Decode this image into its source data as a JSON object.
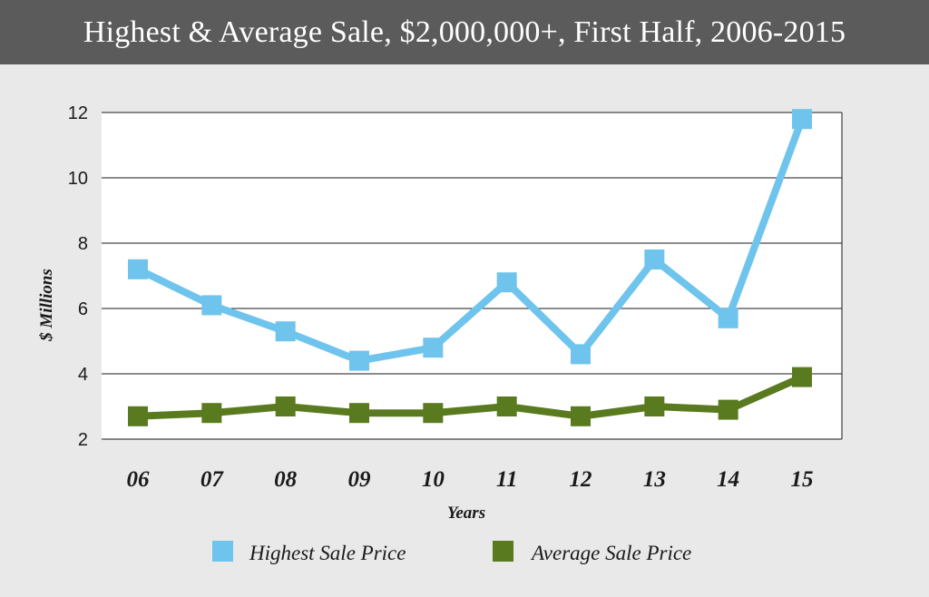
{
  "chart_data": {
    "type": "line",
    "title": "Highest & Average Sale, $2,000,000+, First Half, 2006-2015",
    "xlabel": "Years",
    "ylabel": "$ Millions",
    "categories": [
      "06",
      "07",
      "08",
      "09",
      "10",
      "11",
      "12",
      "13",
      "14",
      "15"
    ],
    "ylim": [
      2,
      12
    ],
    "yticks": [
      "2",
      "4",
      "6",
      "8",
      "10",
      "12"
    ],
    "grid": true,
    "legend_position": "bottom",
    "series": [
      {
        "name": "Highest Sale Price",
        "color": "#6ec4ec",
        "values": [
          7.2,
          6.1,
          5.3,
          4.4,
          4.8,
          6.8,
          4.6,
          7.5,
          5.7,
          11.8
        ]
      },
      {
        "name": "Average Sale Price",
        "color": "#5a7a1f",
        "values": [
          2.7,
          2.8,
          3.0,
          2.8,
          2.8,
          3.0,
          2.7,
          3.0,
          2.9,
          3.9
        ]
      }
    ]
  }
}
